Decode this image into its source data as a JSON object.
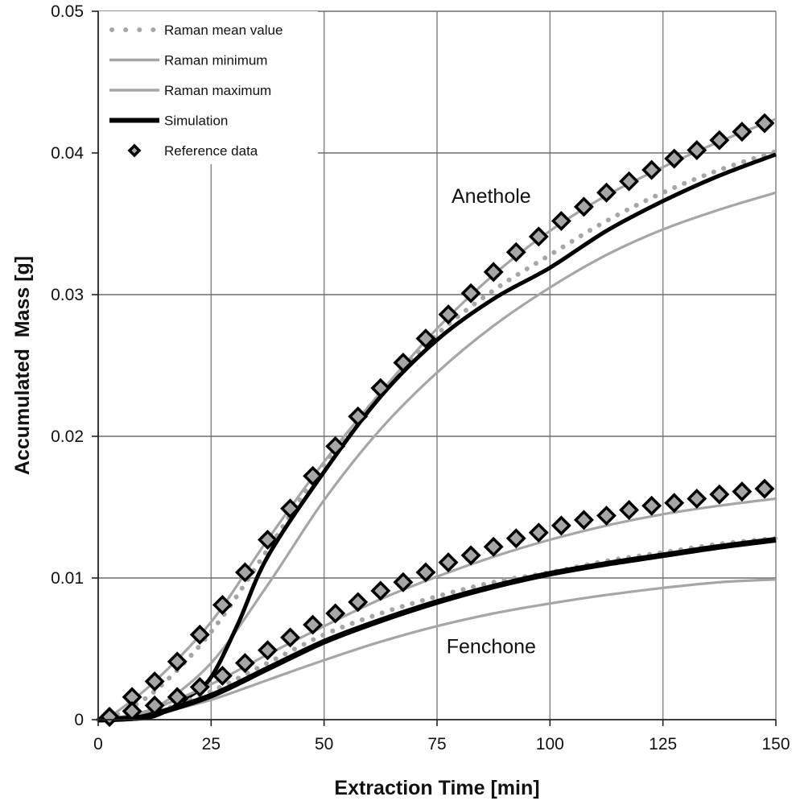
{
  "chart_data": {
    "type": "line",
    "title": "",
    "xlabel": "Extraction Time [min]",
    "ylabel": "Accumulated  Mass [g]",
    "xlim": [
      0,
      150
    ],
    "ylim": [
      0,
      0.05
    ],
    "xticks": [
      0,
      25,
      50,
      75,
      100,
      125,
      150
    ],
    "xtick_labels": [
      "0",
      "25",
      "50",
      "75",
      "100",
      "125",
      "150"
    ],
    "yticks": [
      0,
      0.01,
      0.02,
      0.03,
      0.04,
      0.05
    ],
    "ytick_labels": [
      "0",
      "0.01",
      "0.02",
      "0.03",
      "0.04",
      "0.05"
    ],
    "grid": true,
    "legend_position": "top-left",
    "legend": [
      {
        "key": "mean",
        "label": "Raman mean value",
        "style": "dotted",
        "color": "#a6a6a6"
      },
      {
        "key": "min",
        "label": "Raman minimum",
        "style": "solid-thin",
        "color": "#a6a6a6"
      },
      {
        "key": "max",
        "label": "Raman maximum",
        "style": "solid-thin",
        "color": "#a6a6a6"
      },
      {
        "key": "sim",
        "label": "Simulation",
        "style": "solid-thick",
        "color": "#000000"
      },
      {
        "key": "ref",
        "label": "Reference data",
        "style": "diamond-marker",
        "color": "#a6a6a6"
      }
    ],
    "annotations": [
      {
        "text": "Anethole",
        "x": 87,
        "y": 0.037
      },
      {
        "text": "Fenchone",
        "x": 87,
        "y": 0.0052
      }
    ],
    "groups": [
      {
        "name": "Anethole",
        "series": [
          {
            "key": "max",
            "name": "Raman maximum",
            "x": [
              0,
              2.5,
              12.5,
              25,
              37.5,
              50,
              62.5,
              75,
              87.5,
              100,
              112.5,
              125,
              137.5,
              150
            ],
            "y": [
              0,
              0.0002,
              0.0027,
              0.0069,
              0.0127,
              0.0182,
              0.0231,
              0.0276,
              0.0314,
              0.0345,
              0.037,
              0.039,
              0.0408,
              0.0424
            ]
          },
          {
            "key": "mean",
            "name": "Raman mean value",
            "x": [
              0,
              2.5,
              12.5,
              25,
              37.5,
              50,
              62.5,
              75,
              87.5,
              100,
              112.5,
              125,
              137.5,
              150
            ],
            "y": [
              0,
              0.0001,
              0.002,
              0.0062,
              0.012,
              0.018,
              0.023,
              0.0272,
              0.0303,
              0.0328,
              0.0352,
              0.0372,
              0.0388,
              0.0401
            ]
          },
          {
            "key": "min",
            "name": "Raman minimum",
            "x": [
              0,
              5,
              12.5,
              25,
              37.5,
              50,
              62.5,
              75,
              87.5,
              100,
              112.5,
              125,
              137.5,
              150
            ],
            "y": [
              0,
              0.0001,
              0.0008,
              0.004,
              0.0095,
              0.0155,
              0.0205,
              0.0245,
              0.0278,
              0.0305,
              0.0328,
              0.0346,
              0.036,
              0.0372
            ]
          },
          {
            "key": "sim",
            "name": "Simulation",
            "x": [
              0,
              10,
              15,
              20,
              25,
              31,
              37.5,
              50,
              62.5,
              75,
              87.5,
              100,
              112.5,
              125,
              137.5,
              150
            ],
            "y": [
              0,
              0.0001,
              0.0006,
              0.0016,
              0.003,
              0.0068,
              0.0115,
              0.0175,
              0.0228,
              0.0268,
              0.0297,
              0.0319,
              0.0345,
              0.0366,
              0.0384,
              0.0399
            ]
          },
          {
            "key": "ref",
            "name": "Reference data",
            "x": [
              2.5,
              7.5,
              12.5,
              17.5,
              22.5,
              27.5,
              32.5,
              37.5,
              42.5,
              47.5,
              52.5,
              57.5,
              62.5,
              67.5,
              72.5,
              77.5,
              82.5,
              87.5,
              92.5,
              97.5,
              102.5,
              107.5,
              112.5,
              117.5,
              122.5,
              127.5,
              132.5,
              137.5,
              142.5,
              147.5
            ],
            "y": [
              0.0002,
              0.0016,
              0.0027,
              0.0041,
              0.006,
              0.0081,
              0.0104,
              0.0127,
              0.0149,
              0.0172,
              0.0193,
              0.0214,
              0.0234,
              0.0252,
              0.0269,
              0.0286,
              0.0301,
              0.0316,
              0.033,
              0.0341,
              0.0352,
              0.0362,
              0.0372,
              0.038,
              0.0388,
              0.0396,
              0.0402,
              0.0409,
              0.0415,
              0.0421
            ]
          }
        ]
      },
      {
        "name": "Fenchone",
        "series": [
          {
            "key": "max",
            "name": "Raman maximum",
            "x": [
              0,
              5,
              12.5,
              25,
              37.5,
              50,
              62.5,
              75,
              87.5,
              100,
              112.5,
              125,
              137.5,
              150
            ],
            "y": [
              0,
              0.0002,
              0.0008,
              0.0025,
              0.0046,
              0.0066,
              0.0085,
              0.0101,
              0.0115,
              0.0127,
              0.0137,
              0.0145,
              0.0151,
              0.0156
            ]
          },
          {
            "key": "mean",
            "name": "Raman mean value",
            "x": [
              0,
              7.5,
              12.5,
              25,
              37.5,
              50,
              62.5,
              75,
              87.5,
              100,
              112.5,
              125,
              137.5,
              150
            ],
            "y": [
              0,
              0.0002,
              0.0005,
              0.002,
              0.004,
              0.006,
              0.0075,
              0.0087,
              0.0097,
              0.0104,
              0.0112,
              0.0118,
              0.0124,
              0.0128
            ]
          },
          {
            "key": "min",
            "name": "Raman minimum",
            "x": [
              0,
              7.5,
              12.5,
              25,
              37.5,
              50,
              62.5,
              75,
              87.5,
              100,
              112.5,
              125,
              137.5,
              150
            ],
            "y": [
              0,
              0.0001,
              0.0004,
              0.0014,
              0.0028,
              0.0042,
              0.0055,
              0.0066,
              0.0075,
              0.0082,
              0.0088,
              0.0093,
              0.0097,
              0.0099
            ]
          },
          {
            "key": "sim",
            "name": "Simulation",
            "x": [
              0,
              7.5,
              12.5,
              25,
              37.5,
              50,
              62.5,
              75,
              87.5,
              100,
              112.5,
              125,
              137.5,
              150
            ],
            "y": [
              0,
              0.0001,
              0.0004,
              0.0017,
              0.0036,
              0.0055,
              0.007,
              0.0083,
              0.0094,
              0.0103,
              0.011,
              0.0116,
              0.0122,
              0.0127
            ]
          },
          {
            "key": "ref",
            "name": "Reference data",
            "x": [
              2.5,
              7.5,
              12.5,
              17.5,
              22.5,
              27.5,
              32.5,
              37.5,
              42.5,
              47.5,
              52.5,
              57.5,
              62.5,
              67.5,
              72.5,
              77.5,
              82.5,
              87.5,
              92.5,
              97.5,
              102.5,
              107.5,
              112.5,
              117.5,
              122.5,
              127.5,
              132.5,
              137.5,
              142.5,
              147.5
            ],
            "y": [
              0.0002,
              0.0006,
              0.001,
              0.0016,
              0.0023,
              0.0031,
              0.004,
              0.0049,
              0.0058,
              0.0067,
              0.0075,
              0.0083,
              0.0091,
              0.0097,
              0.0104,
              0.0111,
              0.0116,
              0.0122,
              0.0128,
              0.0132,
              0.0137,
              0.0141,
              0.0144,
              0.0148,
              0.0151,
              0.0153,
              0.0156,
              0.0159,
              0.0161,
              0.0163
            ]
          }
        ]
      }
    ]
  }
}
